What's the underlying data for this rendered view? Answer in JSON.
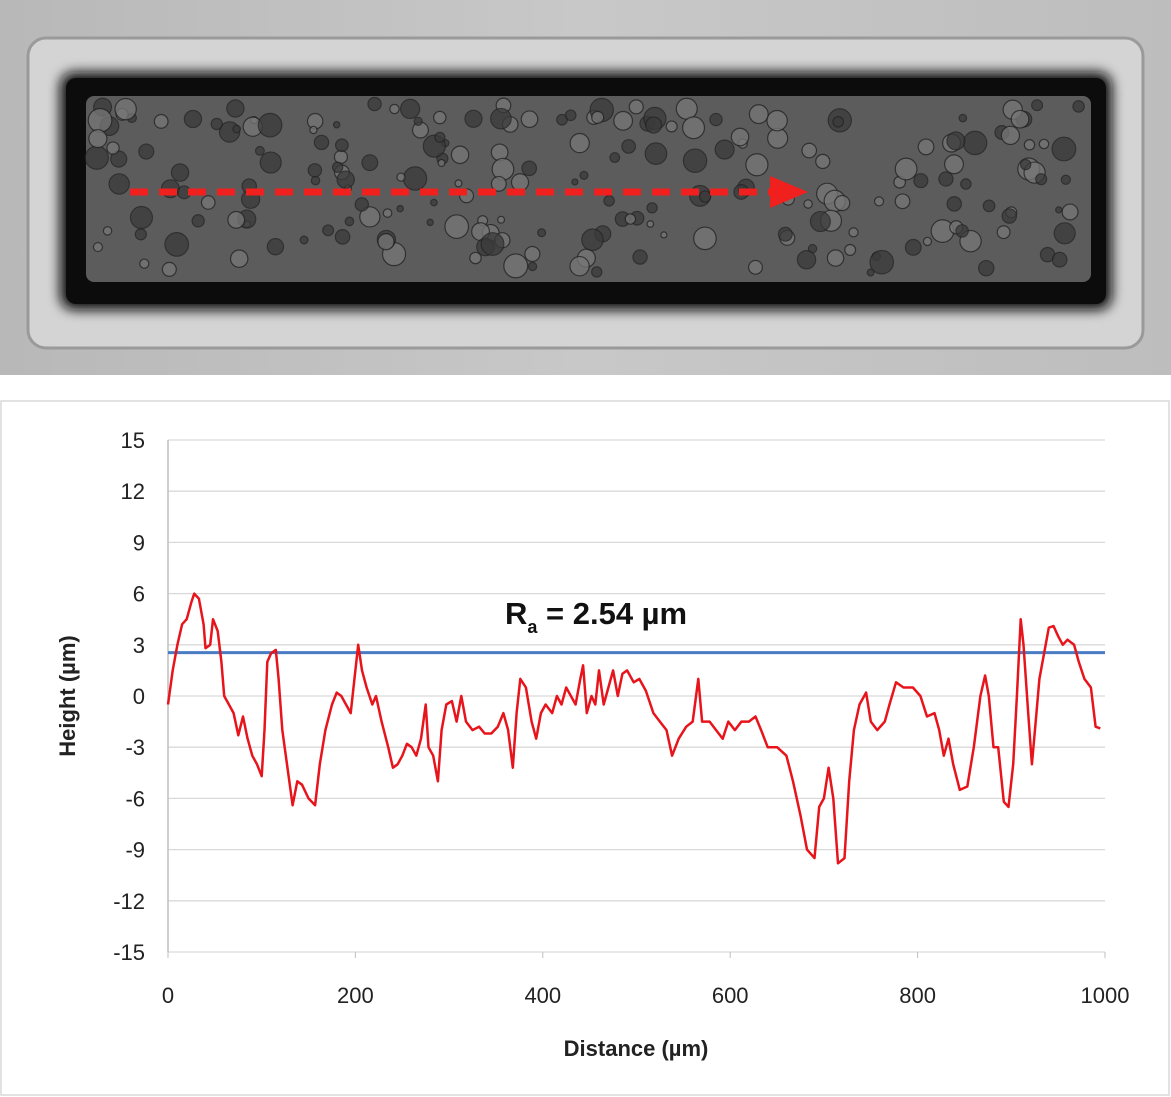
{
  "chart_data": {
    "type": "line",
    "xlabel": "Distance (µm)",
    "ylabel": "Height (µm)",
    "xlim": [
      0,
      1000
    ],
    "xticks": [
      0,
      200,
      400,
      600,
      800,
      1000
    ],
    "ylim": [
      -15,
      15
    ],
    "yticks": [
      15,
      12,
      9,
      6,
      3,
      0,
      -3,
      -6,
      -9,
      -12,
      -15
    ],
    "grid": true,
    "x": [
      0,
      5,
      10,
      15,
      20,
      25,
      28,
      33,
      38,
      40,
      45,
      48,
      53,
      57,
      60,
      65,
      70,
      75,
      80,
      85,
      90,
      95,
      100,
      103,
      106,
      110,
      115,
      118,
      122,
      127,
      133,
      138,
      143,
      150,
      157,
      162,
      168,
      175,
      180,
      185,
      190,
      195,
      198,
      203,
      207,
      212,
      218,
      222,
      228,
      235,
      240,
      245,
      250,
      255,
      260,
      265,
      270,
      275,
      278,
      283,
      288,
      292,
      297,
      303,
      308,
      313,
      318,
      325,
      332,
      338,
      345,
      352,
      358,
      363,
      368,
      372,
      376,
      382,
      388,
      393,
      398,
      403,
      410,
      415,
      420,
      425,
      430,
      435,
      440,
      443,
      447,
      452,
      456,
      460,
      465,
      470,
      475,
      480,
      485,
      490,
      497,
      503,
      510,
      518,
      525,
      532,
      538,
      545,
      553,
      560,
      566,
      570,
      578,
      585,
      592,
      598,
      605,
      612,
      620,
      627,
      633,
      640,
      650,
      660,
      667,
      675,
      682,
      690,
      695,
      700,
      705,
      710,
      715,
      722,
      727,
      732,
      738,
      745,
      750,
      757,
      765,
      770,
      777,
      785,
      795,
      803,
      810,
      818,
      823,
      828,
      833,
      838,
      845,
      853,
      860,
      867,
      872,
      876,
      881,
      886,
      892,
      897,
      902,
      906,
      910,
      913,
      918,
      922,
      926,
      930,
      935,
      940,
      945,
      950,
      955,
      960,
      967,
      972,
      978,
      985,
      990,
      995
    ],
    "series": [
      {
        "color": "#e8141b",
        "values": [
          -0.5,
          1.5,
          3,
          4.2,
          4.5,
          5.5,
          6,
          5.7,
          4.2,
          2.8,
          3,
          4.5,
          3.8,
          2,
          0,
          -0.5,
          -1,
          -2.3,
          -1.2,
          -2.5,
          -3.5,
          -4,
          -4.7,
          -2,
          2,
          2.5,
          2.7,
          1,
          -2,
          -4,
          -6.4,
          -5,
          -5.2,
          -6,
          -6.4,
          -4,
          -2,
          -0.5,
          0.2,
          0,
          -0.5,
          -1,
          0.5,
          3,
          1.5,
          0.5,
          -0.5,
          0,
          -1.5,
          -3,
          -4.2,
          -4,
          -3.5,
          -2.8,
          -3,
          -3.5,
          -2.5,
          -0.5,
          -3,
          -3.5,
          -5,
          -2,
          -0.5,
          -0.3,
          -1.5,
          0,
          -1.5,
          -2,
          -1.8,
          -2.2,
          -2.2,
          -1.8,
          -1,
          -2,
          -4.2,
          -1,
          1,
          0.5,
          -1.5,
          -2.5,
          -1,
          -0.5,
          -1,
          0,
          -0.5,
          0.5,
          0,
          -0.5,
          1,
          1.8,
          -1,
          0,
          -0.5,
          1.5,
          -0.5,
          0.5,
          1.5,
          0,
          1.3,
          1.5,
          0.8,
          1,
          0.3,
          -1,
          -1.5,
          -2,
          -3.5,
          -2.5,
          -1.8,
          -1.5,
          1,
          -1.5,
          -1.5,
          -2,
          -2.5,
          -1.5,
          -2,
          -1.5,
          -1.5,
          -1.2,
          -2,
          -3,
          -3,
          -3.5,
          -5,
          -7,
          -9,
          -9.5,
          -6.5,
          -6,
          -4.2,
          -6,
          -9.8,
          -9.5,
          -5,
          -2,
          -0.5,
          0.2,
          -1.5,
          -2,
          -1.5,
          -0.5,
          0.8,
          0.5,
          0.5,
          0,
          -1.2,
          -1,
          -2,
          -3.5,
          -2.5,
          -4,
          -5.5,
          -5.3,
          -3,
          0,
          1.2,
          0,
          -3,
          -3,
          -6.2,
          -6.5,
          -4,
          0,
          4.5,
          3,
          -1,
          -4,
          -1.5,
          1,
          2.5,
          4,
          4.1,
          3.5,
          3,
          3.3,
          3,
          2,
          1,
          0.5,
          -1.8,
          -1.9
        ]
      }
    ],
    "reference_line": {
      "value": 2.54,
      "color": "#4a7cc4",
      "label_main": "R",
      "label_sub": "a",
      "label_rest": " = 2.54 µm"
    }
  }
}
